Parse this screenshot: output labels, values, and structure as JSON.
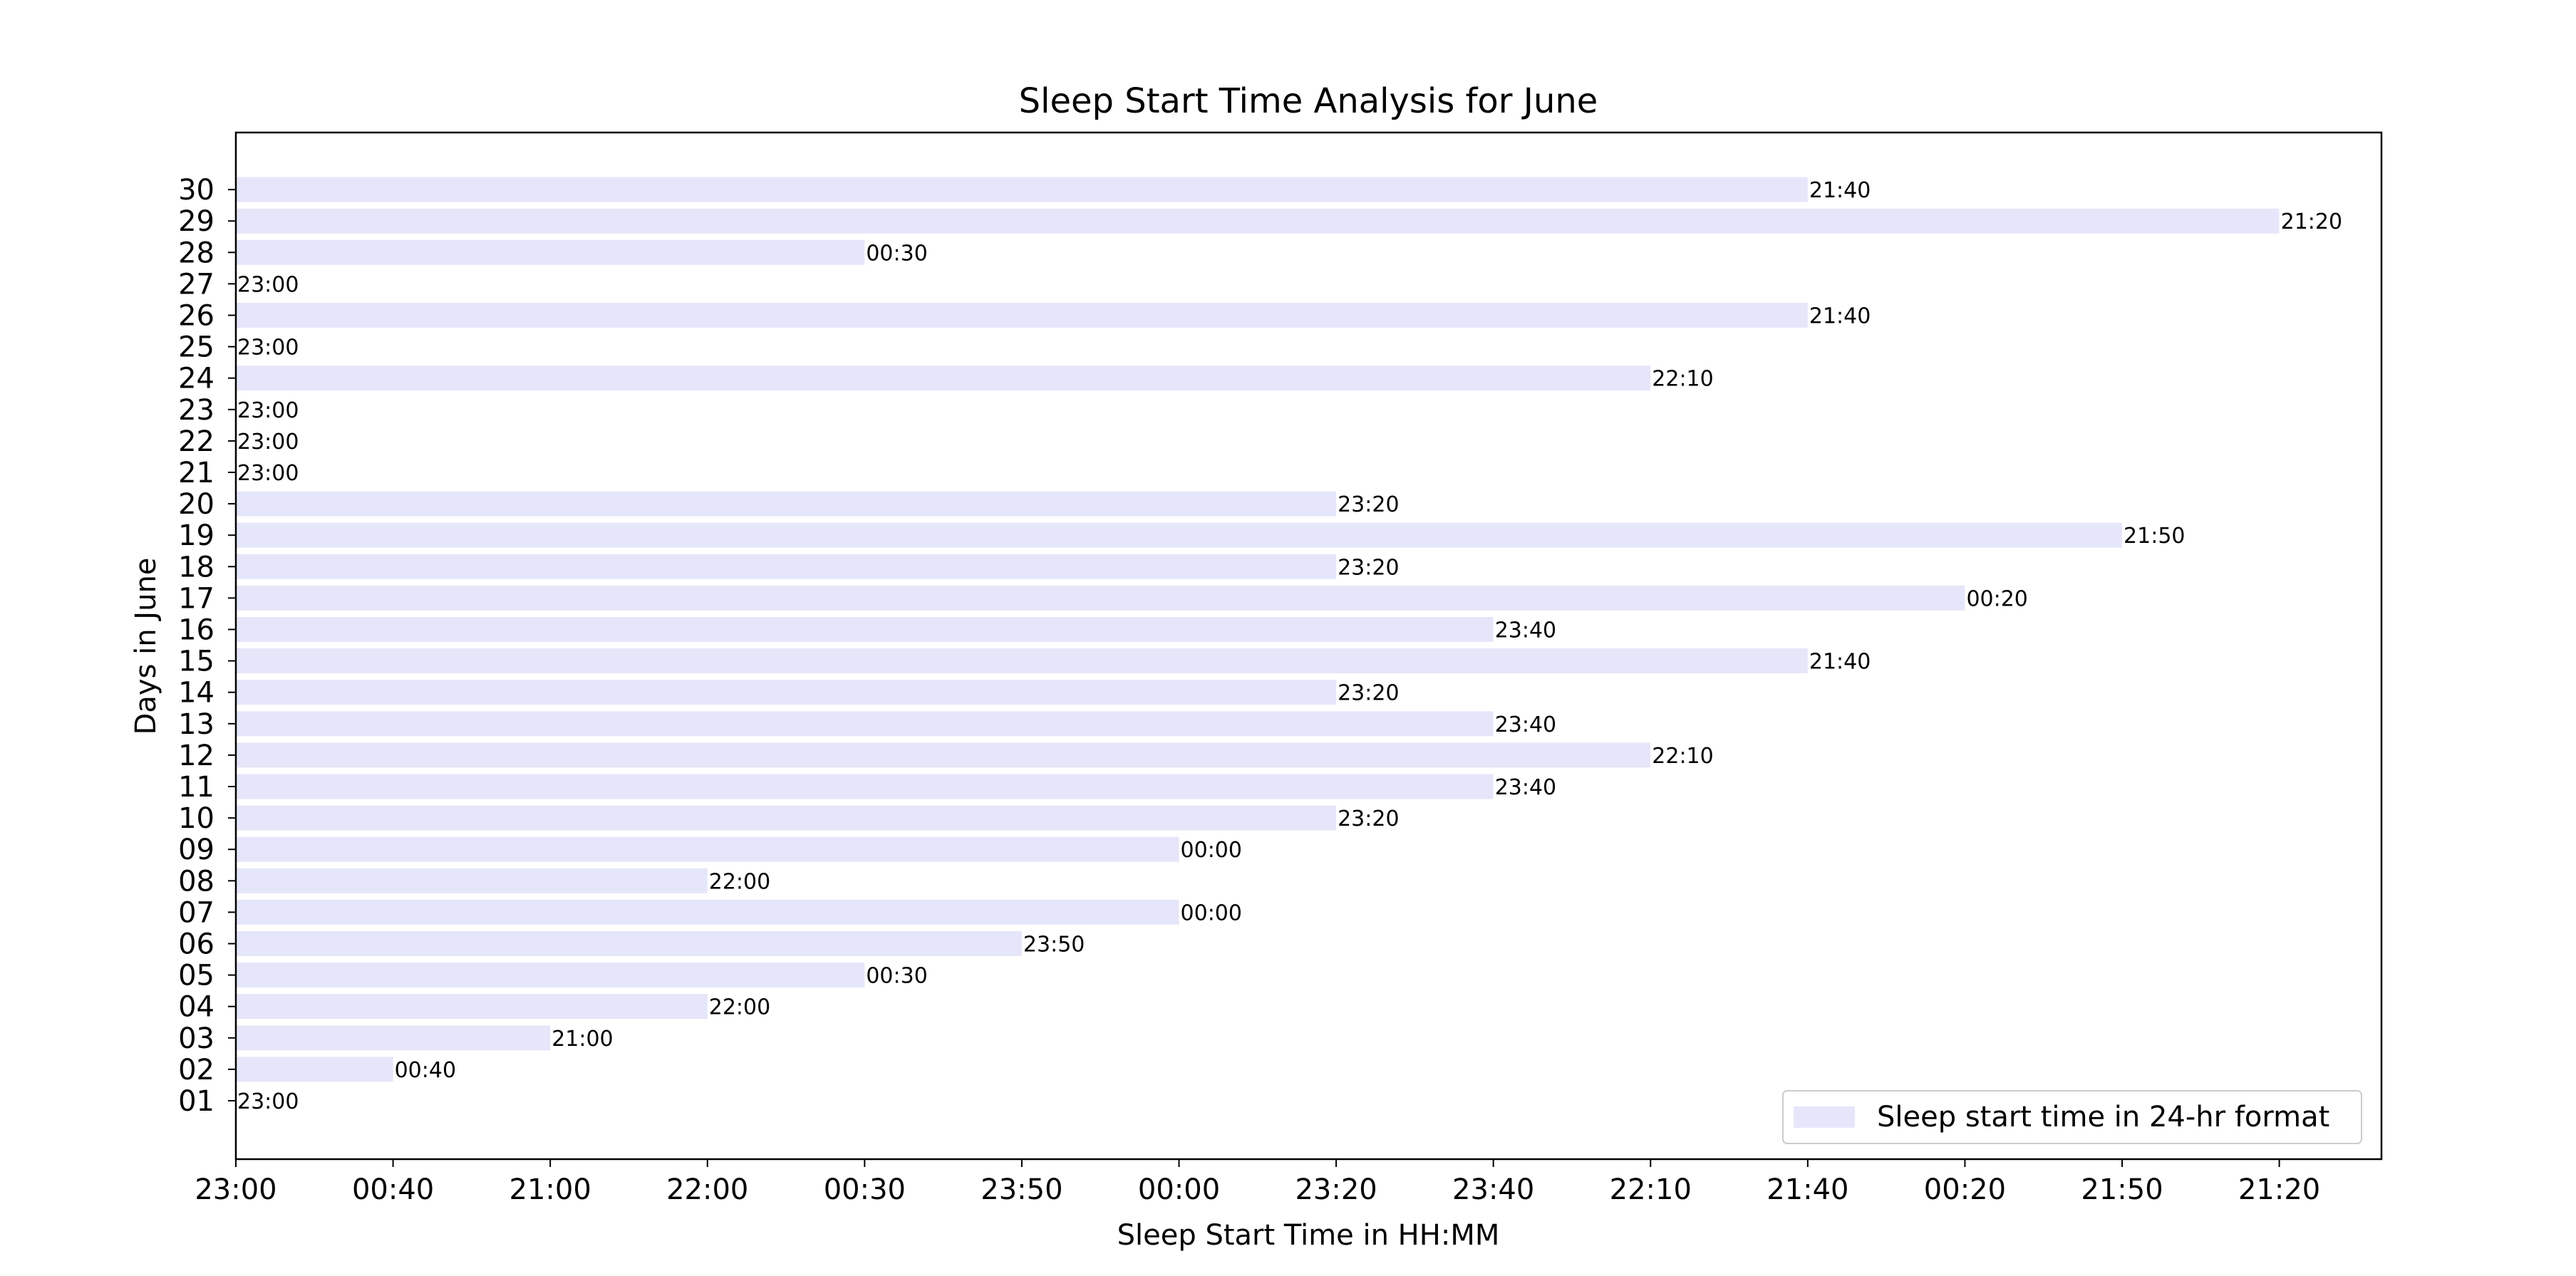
{
  "chart_data": {
    "type": "bar",
    "orientation": "horizontal",
    "title": "Sleep Start Time Analysis for June",
    "xlabel": "Sleep Start Time in HH:MM",
    "ylabel": "Days in June",
    "x_tick_labels": [
      "23:00",
      "00:40",
      "21:00",
      "22:00",
      "00:30",
      "23:50",
      "00:00",
      "23:20",
      "23:40",
      "22:10",
      "21:40",
      "00:20",
      "21:50",
      "21:20"
    ],
    "xlim": [
      0,
      13.65
    ],
    "legend": {
      "position": "lower-right",
      "label": "Sleep start time in 24-hr format"
    },
    "grid": false,
    "bar_color": "#e6e6fa",
    "series": [
      {
        "name": "Sleep start time in 24-hr format",
        "data": [
          {
            "day": "01",
            "time": "23:00",
            "value": 0
          },
          {
            "day": "02",
            "time": "00:40",
            "value": 1
          },
          {
            "day": "03",
            "time": "21:00",
            "value": 2
          },
          {
            "day": "04",
            "time": "22:00",
            "value": 3
          },
          {
            "day": "05",
            "time": "00:30",
            "value": 4
          },
          {
            "day": "06",
            "time": "23:50",
            "value": 5
          },
          {
            "day": "07",
            "time": "00:00",
            "value": 6
          },
          {
            "day": "08",
            "time": "22:00",
            "value": 3
          },
          {
            "day": "09",
            "time": "00:00",
            "value": 6
          },
          {
            "day": "10",
            "time": "23:20",
            "value": 7
          },
          {
            "day": "11",
            "time": "23:40",
            "value": 8
          },
          {
            "day": "12",
            "time": "22:10",
            "value": 9
          },
          {
            "day": "13",
            "time": "23:40",
            "value": 8
          },
          {
            "day": "14",
            "time": "23:20",
            "value": 7
          },
          {
            "day": "15",
            "time": "21:40",
            "value": 10
          },
          {
            "day": "16",
            "time": "23:40",
            "value": 8
          },
          {
            "day": "17",
            "time": "00:20",
            "value": 11
          },
          {
            "day": "18",
            "time": "23:20",
            "value": 7
          },
          {
            "day": "19",
            "time": "21:50",
            "value": 12
          },
          {
            "day": "20",
            "time": "23:20",
            "value": 7
          },
          {
            "day": "21",
            "time": "23:00",
            "value": 0
          },
          {
            "day": "22",
            "time": "23:00",
            "value": 0
          },
          {
            "day": "23",
            "time": "23:00",
            "value": 0
          },
          {
            "day": "24",
            "time": "22:10",
            "value": 9
          },
          {
            "day": "25",
            "time": "23:00",
            "value": 0
          },
          {
            "day": "26",
            "time": "21:40",
            "value": 10
          },
          {
            "day": "27",
            "time": "23:00",
            "value": 0
          },
          {
            "day": "28",
            "time": "00:30",
            "value": 4
          },
          {
            "day": "29",
            "time": "21:20",
            "value": 13
          },
          {
            "day": "30",
            "time": "21:40",
            "value": 10
          }
        ]
      }
    ]
  }
}
